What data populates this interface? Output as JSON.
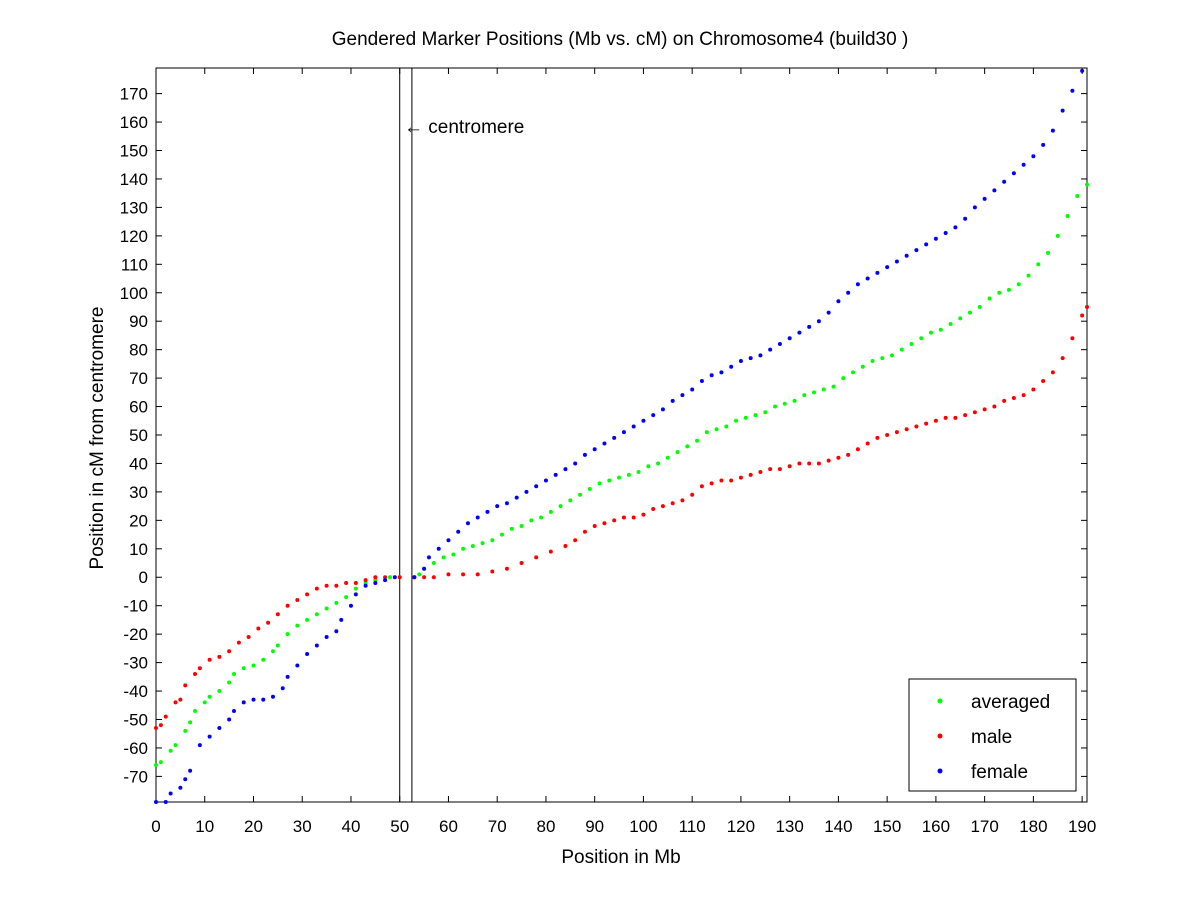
{
  "chart_data": {
    "type": "scatter",
    "title": "Gendered Marker Positions (Mb vs. cM) on Chromosome4 (build30 )",
    "xlabel": "Position in Mb",
    "ylabel": "Position in cM from centromere",
    "xlim": [
      0,
      191
    ],
    "ylim": [
      -79,
      179
    ],
    "xticks": [
      0,
      10,
      20,
      30,
      40,
      50,
      60,
      70,
      80,
      90,
      100,
      110,
      120,
      130,
      140,
      150,
      160,
      170,
      180,
      190
    ],
    "yticks": [
      -70,
      -60,
      -50,
      -40,
      -30,
      -20,
      -10,
      0,
      10,
      20,
      30,
      40,
      50,
      60,
      70,
      80,
      90,
      100,
      110,
      120,
      130,
      140,
      150,
      160,
      170
    ],
    "grid": false,
    "legend_position": "bottom-right",
    "centromere": {
      "label": "centromere",
      "x_start": 50,
      "x_end": 52.5
    },
    "series": [
      {
        "name": "averaged",
        "color": "#00ff00",
        "points": [
          [
            0,
            -66
          ],
          [
            1,
            -65
          ],
          [
            3,
            -61
          ],
          [
            4,
            -59
          ],
          [
            6,
            -54
          ],
          [
            7,
            -51
          ],
          [
            8,
            -47
          ],
          [
            10,
            -44
          ],
          [
            11,
            -42
          ],
          [
            13,
            -40
          ],
          [
            15,
            -37
          ],
          [
            16,
            -34
          ],
          [
            18,
            -32
          ],
          [
            20,
            -31
          ],
          [
            22,
            -29
          ],
          [
            24,
            -26
          ],
          [
            25,
            -24
          ],
          [
            27,
            -20
          ],
          [
            29,
            -17
          ],
          [
            31,
            -15
          ],
          [
            33,
            -13
          ],
          [
            35,
            -11
          ],
          [
            37,
            -9
          ],
          [
            39,
            -7
          ],
          [
            41,
            -4
          ],
          [
            43,
            -2
          ],
          [
            45,
            -1
          ],
          [
            48,
            0
          ],
          [
            50,
            0
          ],
          [
            53,
            0
          ],
          [
            54,
            1
          ],
          [
            55,
            3
          ],
          [
            57,
            5
          ],
          [
            59,
            7
          ],
          [
            61,
            8
          ],
          [
            63,
            10
          ],
          [
            65,
            11
          ],
          [
            67,
            12
          ],
          [
            69,
            13
          ],
          [
            71,
            15
          ],
          [
            73,
            17
          ],
          [
            75,
            18
          ],
          [
            77,
            20
          ],
          [
            79,
            21
          ],
          [
            81,
            23
          ],
          [
            83,
            25
          ],
          [
            85,
            27
          ],
          [
            87,
            29
          ],
          [
            89,
            31
          ],
          [
            91,
            33
          ],
          [
            93,
            34
          ],
          [
            95,
            35
          ],
          [
            97,
            36
          ],
          [
            99,
            37
          ],
          [
            101,
            39
          ],
          [
            103,
            40
          ],
          [
            105,
            42
          ],
          [
            107,
            44
          ],
          [
            109,
            46
          ],
          [
            111,
            48
          ],
          [
            113,
            51
          ],
          [
            115,
            52
          ],
          [
            117,
            53
          ],
          [
            119,
            55
          ],
          [
            121,
            56
          ],
          [
            123,
            57
          ],
          [
            125,
            58
          ],
          [
            127,
            60
          ],
          [
            129,
            61
          ],
          [
            131,
            62
          ],
          [
            133,
            64
          ],
          [
            135,
            65
          ],
          [
            137,
            66
          ],
          [
            139,
            67
          ],
          [
            141,
            70
          ],
          [
            143,
            72
          ],
          [
            145,
            74
          ],
          [
            147,
            76
          ],
          [
            149,
            77
          ],
          [
            151,
            78
          ],
          [
            153,
            80
          ],
          [
            155,
            82
          ],
          [
            157,
            84
          ],
          [
            159,
            86
          ],
          [
            161,
            87
          ],
          [
            163,
            89
          ],
          [
            165,
            91
          ],
          [
            167,
            93
          ],
          [
            169,
            95
          ],
          [
            171,
            98
          ],
          [
            173,
            100
          ],
          [
            175,
            101
          ],
          [
            177,
            103
          ],
          [
            179,
            106
          ],
          [
            181,
            110
          ],
          [
            183,
            114
          ],
          [
            185,
            120
          ],
          [
            187,
            127
          ],
          [
            189,
            134
          ],
          [
            191,
            138
          ]
        ]
      },
      {
        "name": "male",
        "color": "#ff0000",
        "points": [
          [
            0,
            -53
          ],
          [
            1,
            -52
          ],
          [
            2,
            -49
          ],
          [
            4,
            -44
          ],
          [
            5,
            -43
          ],
          [
            6,
            -38
          ],
          [
            8,
            -34
          ],
          [
            9,
            -32
          ],
          [
            11,
            -29
          ],
          [
            13,
            -28
          ],
          [
            15,
            -26
          ],
          [
            17,
            -23
          ],
          [
            19,
            -21
          ],
          [
            21,
            -18
          ],
          [
            23,
            -16
          ],
          [
            25,
            -13
          ],
          [
            27,
            -10
          ],
          [
            29,
            -8
          ],
          [
            31,
            -6
          ],
          [
            33,
            -4
          ],
          [
            35,
            -3
          ],
          [
            37,
            -3
          ],
          [
            39,
            -2
          ],
          [
            41,
            -2
          ],
          [
            43,
            -1
          ],
          [
            45,
            0
          ],
          [
            47,
            0
          ],
          [
            50,
            0
          ],
          [
            53,
            0
          ],
          [
            55,
            0
          ],
          [
            57,
            0
          ],
          [
            60,
            1
          ],
          [
            63,
            1
          ],
          [
            66,
            1
          ],
          [
            69,
            2
          ],
          [
            72,
            3
          ],
          [
            75,
            5
          ],
          [
            78,
            7
          ],
          [
            81,
            9
          ],
          [
            84,
            11
          ],
          [
            86,
            13
          ],
          [
            88,
            16
          ],
          [
            90,
            18
          ],
          [
            92,
            19
          ],
          [
            94,
            20
          ],
          [
            96,
            21
          ],
          [
            98,
            21
          ],
          [
            100,
            22
          ],
          [
            102,
            24
          ],
          [
            104,
            25
          ],
          [
            106,
            26
          ],
          [
            108,
            27
          ],
          [
            110,
            29
          ],
          [
            112,
            32
          ],
          [
            114,
            33
          ],
          [
            116,
            34
          ],
          [
            118,
            34
          ],
          [
            120,
            35
          ],
          [
            122,
            36
          ],
          [
            124,
            37
          ],
          [
            126,
            38
          ],
          [
            128,
            38
          ],
          [
            130,
            39
          ],
          [
            132,
            40
          ],
          [
            134,
            40
          ],
          [
            136,
            40
          ],
          [
            138,
            41
          ],
          [
            140,
            42
          ],
          [
            142,
            43
          ],
          [
            144,
            45
          ],
          [
            146,
            47
          ],
          [
            148,
            49
          ],
          [
            150,
            50
          ],
          [
            152,
            51
          ],
          [
            154,
            52
          ],
          [
            156,
            53
          ],
          [
            158,
            54
          ],
          [
            160,
            55
          ],
          [
            162,
            56
          ],
          [
            164,
            56
          ],
          [
            166,
            57
          ],
          [
            168,
            58
          ],
          [
            170,
            59
          ],
          [
            172,
            60
          ],
          [
            174,
            62
          ],
          [
            176,
            63
          ],
          [
            178,
            64
          ],
          [
            180,
            66
          ],
          [
            182,
            69
          ],
          [
            184,
            72
          ],
          [
            186,
            77
          ],
          [
            188,
            84
          ],
          [
            190,
            92
          ],
          [
            191,
            95
          ]
        ]
      },
      {
        "name": "female",
        "color": "#0000ff",
        "points": [
          [
            0,
            -79
          ],
          [
            2,
            -79
          ],
          [
            3,
            -76
          ],
          [
            5,
            -74
          ],
          [
            6,
            -71
          ],
          [
            7,
            -68
          ],
          [
            9,
            -59
          ],
          [
            11,
            -56
          ],
          [
            13,
            -53
          ],
          [
            15,
            -50
          ],
          [
            16,
            -47
          ],
          [
            18,
            -44
          ],
          [
            20,
            -43
          ],
          [
            22,
            -43
          ],
          [
            24,
            -42
          ],
          [
            26,
            -39
          ],
          [
            27,
            -35
          ],
          [
            29,
            -31
          ],
          [
            31,
            -27
          ],
          [
            33,
            -24
          ],
          [
            35,
            -21
          ],
          [
            37,
            -19
          ],
          [
            38,
            -15
          ],
          [
            40,
            -10
          ],
          [
            41,
            -6
          ],
          [
            43,
            -3
          ],
          [
            45,
            -2
          ],
          [
            47,
            -1
          ],
          [
            49,
            0
          ],
          [
            53,
            0
          ],
          [
            55,
            3
          ],
          [
            56,
            7
          ],
          [
            58,
            10
          ],
          [
            60,
            13
          ],
          [
            62,
            16
          ],
          [
            64,
            19
          ],
          [
            66,
            21
          ],
          [
            68,
            23
          ],
          [
            70,
            25
          ],
          [
            72,
            26
          ],
          [
            74,
            28
          ],
          [
            76,
            30
          ],
          [
            78,
            32
          ],
          [
            80,
            34
          ],
          [
            82,
            36
          ],
          [
            84,
            38
          ],
          [
            86,
            40
          ],
          [
            88,
            43
          ],
          [
            90,
            45
          ],
          [
            92,
            47
          ],
          [
            94,
            49
          ],
          [
            96,
            51
          ],
          [
            98,
            53
          ],
          [
            100,
            55
          ],
          [
            102,
            57
          ],
          [
            104,
            59
          ],
          [
            106,
            62
          ],
          [
            108,
            64
          ],
          [
            110,
            66
          ],
          [
            112,
            69
          ],
          [
            114,
            71
          ],
          [
            116,
            72
          ],
          [
            118,
            74
          ],
          [
            120,
            76
          ],
          [
            122,
            77
          ],
          [
            124,
            78
          ],
          [
            126,
            80
          ],
          [
            128,
            82
          ],
          [
            130,
            84
          ],
          [
            132,
            86
          ],
          [
            134,
            88
          ],
          [
            136,
            90
          ],
          [
            138,
            93
          ],
          [
            140,
            97
          ],
          [
            142,
            100
          ],
          [
            144,
            103
          ],
          [
            146,
            105
          ],
          [
            148,
            107
          ],
          [
            150,
            109
          ],
          [
            152,
            111
          ],
          [
            154,
            113
          ],
          [
            156,
            115
          ],
          [
            158,
            117
          ],
          [
            160,
            119
          ],
          [
            162,
            121
          ],
          [
            164,
            123
          ],
          [
            166,
            126
          ],
          [
            168,
            130
          ],
          [
            170,
            133
          ],
          [
            172,
            136
          ],
          [
            174,
            139
          ],
          [
            176,
            142
          ],
          [
            178,
            145
          ],
          [
            180,
            148
          ],
          [
            182,
            152
          ],
          [
            184,
            157
          ],
          [
            186,
            164
          ],
          [
            188,
            171
          ],
          [
            190,
            178
          ]
        ]
      }
    ]
  }
}
